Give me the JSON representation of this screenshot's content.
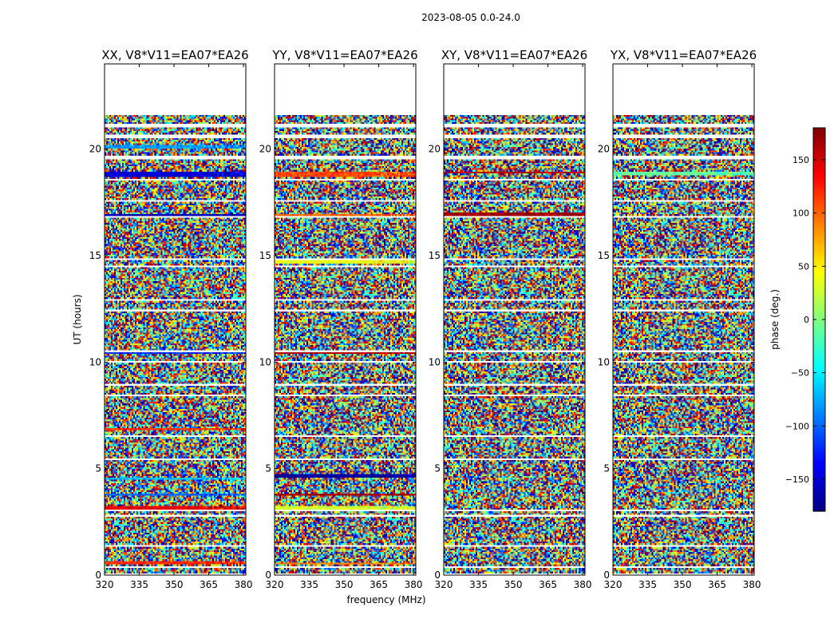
{
  "figure": {
    "suptitle": "2023-08-05 0.0-24.0"
  },
  "chart_data": {
    "type": "heatmap",
    "xlabel": "frequency (MHz)",
    "ylabel": "UT (hours)",
    "xlim": [
      320,
      381
    ],
    "ylim": [
      0,
      24
    ],
    "xticks": [
      320,
      335,
      350,
      365,
      380
    ],
    "yticks": [
      0,
      5,
      10,
      15,
      20
    ],
    "panels": [
      {
        "title": "XX, V8*V11=EA07*EA26"
      },
      {
        "title": "YY, V8*V11=EA07*EA26"
      },
      {
        "title": "XY, V8*V11=EA07*EA26"
      },
      {
        "title": "YX, V8*V11=EA07*EA26"
      }
    ],
    "colorbar": {
      "label": "phase (deg.)",
      "range": [
        -180,
        180
      ],
      "ticks": [
        -150,
        -100,
        -50,
        0,
        50,
        100,
        150
      ],
      "colormap": "jet"
    },
    "data_extent_hours": [
      0,
      21.6
    ],
    "gaps_hours": [
      0.05,
      0.4,
      1.4,
      2.8,
      3.0,
      5.45,
      6.5,
      8.4,
      8.9,
      10.0,
      10.5,
      12.4,
      12.9,
      14.5,
      14.8,
      16.8,
      17.6,
      18.6,
      19.6,
      20.6,
      21.1
    ],
    "coherent_bands": [
      {
        "panel": 0,
        "ut": [
          18.7,
          18.95
        ],
        "phase": -150
      },
      {
        "panel": 0,
        "ut": [
          20.0,
          20.2
        ],
        "phase": -80
      },
      {
        "panel": 0,
        "ut": [
          16.8,
          16.95
        ],
        "phase": -160
      },
      {
        "panel": 0,
        "ut": [
          10.4,
          10.55
        ],
        "phase": -120
      },
      {
        "panel": 0,
        "ut": [
          6.8,
          6.9
        ],
        "phase": 120
      },
      {
        "panel": 0,
        "ut": [
          3.1,
          3.25
        ],
        "phase": 140
      },
      {
        "panel": 0,
        "ut": [
          3.75,
          3.85
        ],
        "phase": -100
      },
      {
        "panel": 0,
        "ut": [
          4.5,
          4.6
        ],
        "phase": -70
      },
      {
        "panel": 0,
        "ut": [
          0.5,
          0.65
        ],
        "phase": 120
      },
      {
        "panel": 1,
        "ut": [
          18.7,
          18.95
        ],
        "phase": 110
      },
      {
        "panel": 1,
        "ut": [
          16.8,
          16.95
        ],
        "phase": 100
      },
      {
        "panel": 1,
        "ut": [
          10.4,
          10.55
        ],
        "phase": 160
      },
      {
        "panel": 1,
        "ut": [
          14.6,
          14.75
        ],
        "phase": 40
      },
      {
        "panel": 1,
        "ut": [
          4.6,
          4.72
        ],
        "phase": -170
      },
      {
        "panel": 1,
        "ut": [
          3.7,
          3.8
        ],
        "phase": 170
      },
      {
        "panel": 1,
        "ut": [
          3.05,
          3.2
        ],
        "phase": 30
      },
      {
        "panel": 1,
        "ut": [
          0.5,
          0.6
        ],
        "phase": 90
      },
      {
        "panel": 2,
        "ut": [
          18.85,
          18.95
        ],
        "phase": 160
      },
      {
        "panel": 2,
        "ut": [
          16.9,
          17.0
        ],
        "phase": 170
      },
      {
        "panel": 3,
        "ut": [
          18.75,
          18.95
        ],
        "phase": -10
      },
      {
        "panel": 3,
        "ut": [
          17.0,
          17.05
        ],
        "phase": -150
      }
    ]
  }
}
